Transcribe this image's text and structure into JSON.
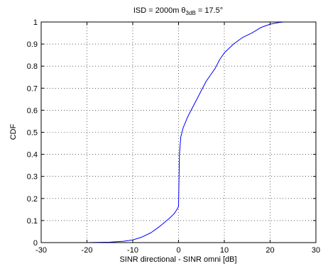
{
  "chart_data": {
    "type": "line",
    "title": {
      "prefix": "ISD = 2000m ",
      "symbol": "θ",
      "subscript": "3dB",
      "suffix": " = 17.5°"
    },
    "xlabel": "SINR directional - SINR omni [dB]",
    "ylabel": "CDF",
    "xlim": [
      -30,
      30
    ],
    "ylim": [
      0,
      1
    ],
    "xticks": [
      -30,
      -20,
      -10,
      0,
      10,
      20,
      30
    ],
    "xtick_labels": [
      "-30",
      "-20",
      "-10",
      "0",
      "10",
      "20",
      "30"
    ],
    "yticks": [
      0,
      0.1,
      0.2,
      0.3,
      0.4,
      0.5,
      0.6,
      0.7,
      0.8,
      0.9,
      1
    ],
    "ytick_labels": [
      "0",
      "0.1",
      "0.2",
      "0.3",
      "0.4",
      "0.5",
      "0.6",
      "0.7",
      "0.8",
      "0.9",
      "1"
    ],
    "grid": true,
    "grid_style": "dotted",
    "legend": "none",
    "series": [
      {
        "color": "#0000ff",
        "x": [
          -20,
          -15,
          -12,
          -10,
          -8,
          -6,
          -4,
          -2,
          -1,
          -0.5,
          -0.2,
          0,
          0.2,
          0.5,
          1,
          2,
          3,
          4,
          5,
          6,
          7,
          8,
          9,
          10,
          12,
          14,
          16,
          18,
          20,
          22,
          23
        ],
        "y": [
          0,
          0.002,
          0.006,
          0.012,
          0.025,
          0.045,
          0.075,
          0.11,
          0.13,
          0.145,
          0.155,
          0.165,
          0.4,
          0.48,
          0.52,
          0.57,
          0.61,
          0.65,
          0.69,
          0.73,
          0.76,
          0.79,
          0.83,
          0.86,
          0.9,
          0.93,
          0.95,
          0.975,
          0.99,
          0.998,
          1.0
        ]
      }
    ]
  }
}
